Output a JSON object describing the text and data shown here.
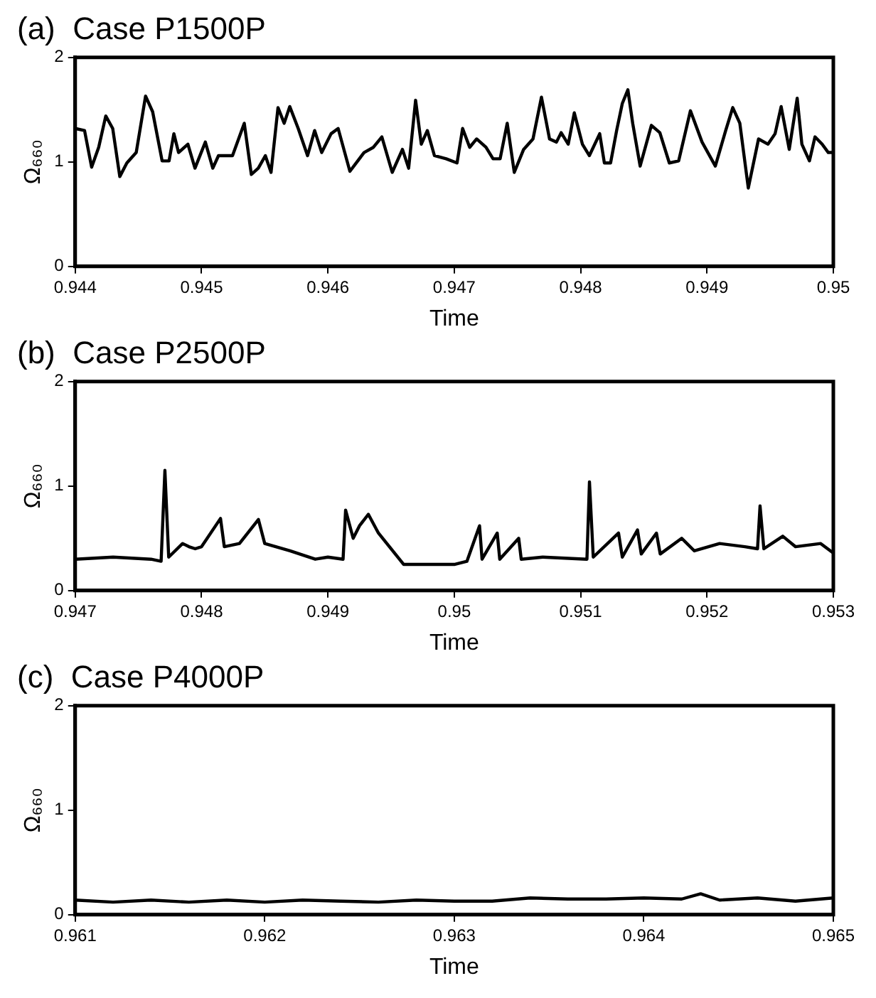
{
  "chart_data": [
    {
      "type": "line",
      "title": "(a)  Case P1500P",
      "xlabel": "Time",
      "ylabel": "Ω₆₆₀",
      "xlim": [
        0.944,
        0.95
      ],
      "xticks": [
        0.944,
        0.945,
        0.946,
        0.947,
        0.948,
        0.949,
        0.95
      ],
      "ylim": [
        0,
        2
      ],
      "yticks": [
        0,
        1,
        2
      ],
      "grid": false,
      "legend": false,
      "marker": "none",
      "line_style": "solid",
      "x": [
        0.944,
        0.944074,
        0.94413,
        0.944186,
        0.944242,
        0.944297,
        0.944353,
        0.944409,
        0.944483,
        0.944557,
        0.944613,
        0.944688,
        0.944743,
        0.944781,
        0.944818,
        0.944892,
        0.944948,
        0.94503,
        0.945089,
        0.945134,
        0.945245,
        0.945338,
        0.945394,
        0.945449,
        0.945505,
        0.94555,
        0.945605,
        0.945654,
        0.945698,
        0.945765,
        0.945839,
        0.945895,
        0.945951,
        0.946025,
        0.946081,
        0.946174,
        0.946286,
        0.94636,
        0.946427,
        0.946509,
        0.94659,
        0.946639,
        0.946694,
        0.946739,
        0.946787,
        0.946843,
        0.946936,
        0.947022,
        0.947066,
        0.947122,
        0.947177,
        0.947251,
        0.947307,
        0.947363,
        0.947419,
        0.947475,
        0.947549,
        0.947623,
        0.94769,
        0.947754,
        0.947809,
        0.947846,
        0.947902,
        0.94795,
        0.948014,
        0.948069,
        0.948151,
        0.948188,
        0.948237,
        0.948285,
        0.94833,
        0.948374,
        0.948412,
        0.948471,
        0.94856,
        0.948627,
        0.948702,
        0.948776,
        0.948869,
        0.948961,
        0.949066,
        0.949148,
        0.949204,
        0.94926,
        0.949327,
        0.949408,
        0.949483,
        0.949539,
        0.949587,
        0.949651,
        0.949714,
        0.949751,
        0.949811,
        0.949855,
        0.949911,
        0.94996,
        0.95
      ],
      "series": [
        {
          "color": "#000000",
          "values": [
            1.32,
            1.3,
            0.95,
            1.14,
            1.44,
            1.32,
            0.86,
            0.99,
            1.09,
            1.63,
            1.48,
            1.01,
            1.01,
            1.27,
            1.09,
            1.17,
            0.94,
            1.19,
            0.94,
            1.06,
            1.06,
            1.37,
            0.88,
            0.94,
            1.06,
            0.9,
            1.52,
            1.37,
            1.53,
            1.32,
            1.06,
            1.3,
            1.09,
            1.27,
            1.32,
            0.91,
            1.09,
            1.14,
            1.24,
            0.9,
            1.12,
            0.94,
            1.59,
            1.17,
            1.3,
            1.06,
            1.03,
            0.99,
            1.32,
            1.14,
            1.22,
            1.14,
            1.03,
            1.03,
            1.37,
            0.9,
            1.12,
            1.22,
            1.62,
            1.22,
            1.19,
            1.28,
            1.17,
            1.47,
            1.17,
            1.06,
            1.27,
            0.99,
            0.99,
            1.3,
            1.56,
            1.69,
            1.37,
            0.96,
            1.35,
            1.28,
            0.99,
            1.01,
            1.49,
            1.19,
            0.96,
            1.3,
            1.52,
            1.37,
            0.75,
            1.22,
            1.17,
            1.27,
            1.53,
            1.12,
            1.61,
            1.17,
            1.01,
            1.24,
            1.17,
            1.09,
            1.09
          ]
        }
      ]
    },
    {
      "type": "line",
      "title": "(b)  Case P2500P",
      "xlabel": "Time",
      "ylabel": "Ω₆₆₀",
      "xlim": [
        0.947,
        0.953
      ],
      "xticks": [
        0.947,
        0.948,
        0.949,
        0.95,
        0.951,
        0.952,
        0.953
      ],
      "ylim": [
        0,
        2
      ],
      "yticks": [
        0,
        1,
        2
      ],
      "grid": false,
      "legend": false,
      "marker": "none",
      "line_style": "solid",
      "x": [
        0.947,
        0.9473,
        0.9476,
        0.94768,
        0.94771,
        0.94774,
        0.94785,
        0.9479,
        0.94795,
        0.948,
        0.94815,
        0.94818,
        0.9483,
        0.94845,
        0.9485,
        0.9487,
        0.9489,
        0.949,
        0.94912,
        0.94914,
        0.9492,
        0.94925,
        0.94932,
        0.9494,
        0.9496,
        0.95,
        0.9501,
        0.9502,
        0.95022,
        0.95034,
        0.95036,
        0.95051,
        0.95053,
        0.9507,
        0.95105,
        0.95107,
        0.9511,
        0.9513,
        0.95133,
        0.95145,
        0.95148,
        0.9516,
        0.95163,
        0.9518,
        0.9519,
        0.9521,
        0.9523,
        0.9524,
        0.95242,
        0.95245,
        0.9526,
        0.9527,
        0.9529,
        0.953
      ],
      "series": [
        {
          "color": "#000000",
          "values": [
            0.3,
            0.32,
            0.3,
            0.28,
            1.15,
            0.32,
            0.45,
            0.42,
            0.4,
            0.42,
            0.69,
            0.42,
            0.45,
            0.68,
            0.45,
            0.38,
            0.3,
            0.32,
            0.3,
            0.77,
            0.5,
            0.62,
            0.73,
            0.55,
            0.25,
            0.25,
            0.28,
            0.62,
            0.3,
            0.55,
            0.3,
            0.5,
            0.3,
            0.32,
            0.3,
            1.04,
            0.32,
            0.55,
            0.32,
            0.58,
            0.35,
            0.55,
            0.35,
            0.5,
            0.38,
            0.45,
            0.42,
            0.4,
            0.81,
            0.4,
            0.52,
            0.42,
            0.45,
            0.36
          ]
        }
      ]
    },
    {
      "type": "line",
      "title": "(c)  Case P4000P",
      "xlabel": "Time",
      "ylabel": "Ω₆₆₀",
      "xlim": [
        0.961,
        0.965
      ],
      "xticks": [
        0.961,
        0.962,
        0.963,
        0.964,
        0.965
      ],
      "ylim": [
        0,
        2
      ],
      "yticks": [
        0,
        1,
        2
      ],
      "grid": false,
      "legend": false,
      "marker": "none",
      "line_style": "solid",
      "x": [
        0.961,
        0.9612,
        0.9614,
        0.9616,
        0.9618,
        0.962,
        0.9622,
        0.9624,
        0.9626,
        0.9628,
        0.963,
        0.9632,
        0.9634,
        0.9636,
        0.9638,
        0.964,
        0.9642,
        0.9643,
        0.9644,
        0.9646,
        0.9648,
        0.965
      ],
      "series": [
        {
          "color": "#000000",
          "values": [
            0.14,
            0.12,
            0.14,
            0.12,
            0.14,
            0.12,
            0.14,
            0.13,
            0.12,
            0.14,
            0.13,
            0.13,
            0.16,
            0.15,
            0.15,
            0.16,
            0.15,
            0.2,
            0.14,
            0.16,
            0.13,
            0.16
          ]
        }
      ]
    }
  ]
}
